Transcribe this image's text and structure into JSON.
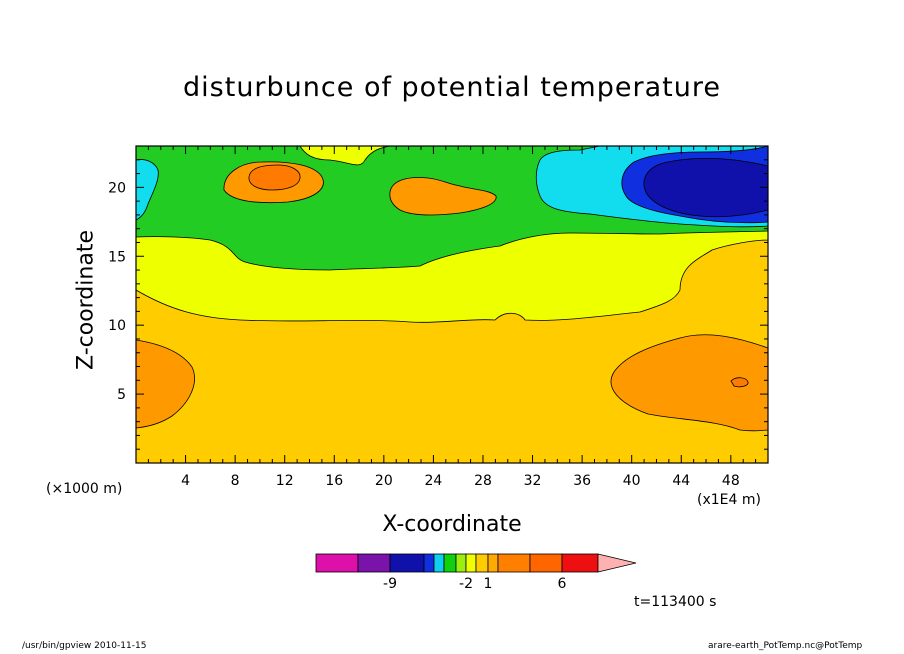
{
  "chart_data": {
    "type": "heatmap",
    "title": "disturbunce of potential temperature",
    "xlabel": "X-coordinate",
    "ylabel": "Z-coordinate",
    "x_unit_left": "(×1000 m)",
    "x_unit_right": "(x1E4 m)",
    "xlim": [
      0,
      51
    ],
    "ylim": [
      0,
      23
    ],
    "x_ticks": [
      4,
      8,
      12,
      16,
      20,
      24,
      28,
      32,
      36,
      40,
      44,
      48
    ],
    "y_ticks": [
      5,
      10,
      15,
      20
    ],
    "time_label": "t=113400 s",
    "colorbar": {
      "colors": [
        "#dd11aa",
        "#7a13aa",
        "#1010aa",
        "#1030e0",
        "#10d0f0",
        "#10d010",
        "#9aee10",
        "#eeff00",
        "#ffcc00",
        "#ffaa00",
        "#ff8000",
        "#ff6600",
        "#ee1010",
        "#ff7070",
        "#ffb0b0"
      ],
      "labels": [
        {
          "text": "-9",
          "after_box": 1
        },
        {
          "text": "-2",
          "after_box": 6
        },
        {
          "text": "1",
          "after_box": 8
        },
        {
          "text": "6",
          "after_box": 11
        }
      ]
    },
    "regions": [
      {
        "level": "orange",
        "color": "#ff9900",
        "description": "lower-left warm lobe",
        "x": [
          0,
          5
        ],
        "z": [
          2.5,
          8.8
        ]
      },
      {
        "level": "orange",
        "color": "#ff9900",
        "description": "lower-right warm lobe",
        "x": [
          39,
          51
        ],
        "z": [
          2.5,
          9.5
        ]
      },
      {
        "level": "orange",
        "color": "#ff9900",
        "description": "upper warm cell near x=11",
        "x": [
          7.5,
          14.5
        ],
        "z": [
          19,
          21.8
        ]
      },
      {
        "level": "red-orange",
        "color": "#ff7a00",
        "description": "core near x=11",
        "x": [
          9.5,
          12.5
        ],
        "z": [
          19.8,
          21.2
        ]
      },
      {
        "level": "orange",
        "color": "#ff9900",
        "description": "upper warm cell near x=26",
        "x": [
          21.5,
          28.5
        ],
        "z": [
          17.8,
          20.5
        ]
      },
      {
        "level": "cyan",
        "color": "#11ddee",
        "description": "upper-right cool region",
        "x": [
          32,
          51
        ],
        "z": [
          17.3,
          22.7
        ]
      },
      {
        "level": "blue",
        "color": "#1010aa",
        "description": "cold core near x=46",
        "x": [
          41,
          51
        ],
        "z": [
          17.5,
          22.5
        ]
      },
      {
        "level": "green",
        "color": "#22cc22",
        "description": "green band",
        "x": [
          0,
          51
        ],
        "z": [
          14,
          23
        ]
      },
      {
        "level": "yellow",
        "color": "#eeff00",
        "description": "yellow band",
        "x": [
          0,
          51
        ],
        "z": [
          10,
          16.5
        ]
      }
    ]
  },
  "footer": {
    "left": "/usr/bin/gpview  2010-11-15",
    "right": "arare-earth_PotTemp.nc@PotTemp"
  }
}
